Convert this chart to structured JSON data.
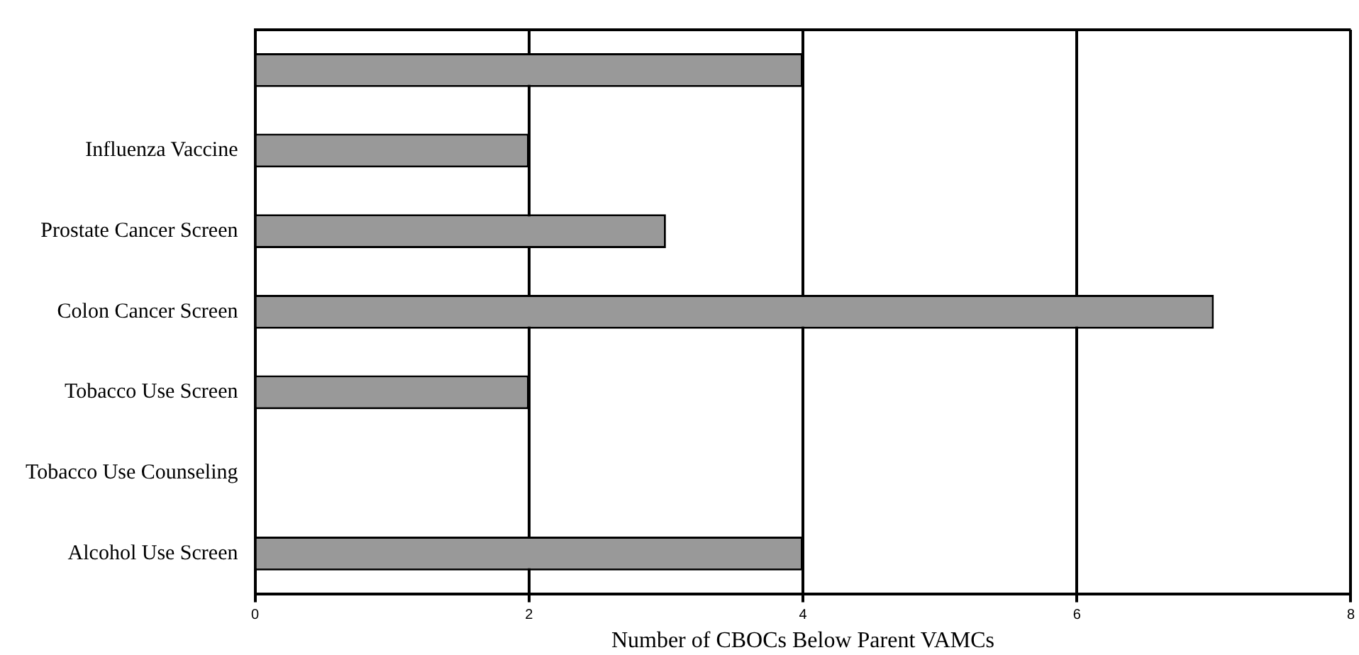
{
  "chart_data": {
    "type": "bar",
    "orientation": "horizontal",
    "xlabel": "Number of CBOCs Below Parent VAMCs",
    "categories": [
      null,
      "Influenza Vaccine",
      "Prostate Cancer Screen",
      "Colon Cancer Screen",
      "Tobacco Use Screen",
      "Tobacco Use Counseling",
      "Alcohol Use Screen"
    ],
    "values": [
      4,
      2,
      3,
      7,
      2,
      0,
      4
    ],
    "color": "#999999",
    "xlim": [
      0,
      8
    ],
    "xticks": [
      0,
      2,
      4,
      6,
      8
    ],
    "grid": "x",
    "legend": false
  }
}
